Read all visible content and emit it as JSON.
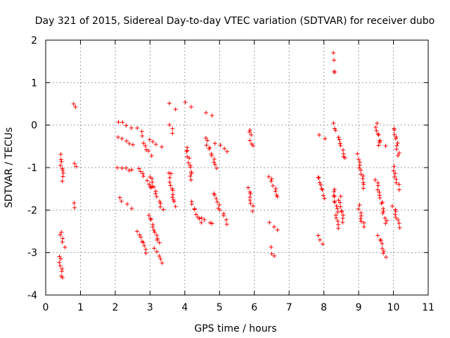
{
  "chart_data": {
    "type": "scatter",
    "title": "Day 321 of 2015, Sidereal Day-to-day VTEC variation (SDTVAR) for receiver dubo",
    "xlabel": "GPS time / hours",
    "ylabel": "SDTVAR / TECUs",
    "xlim": [
      0,
      11
    ],
    "ylim": [
      -4,
      2
    ],
    "xticks": [
      "0",
      "1",
      "2",
      "3",
      "4",
      "5",
      "6",
      "7",
      "8",
      "9",
      "10",
      "11"
    ],
    "yticks": [
      "-4",
      "-3",
      "-2",
      "-1",
      "0",
      "1",
      "2"
    ],
    "grid": true,
    "marker": "+",
    "color": "#ff0000",
    "series": [
      {
        "name": "SDTVAR",
        "segments": [
          [
            0.42,
            0.5,
            -0.7,
            -1.3
          ],
          [
            0.42,
            0.52,
            -2.5,
            -2.85
          ],
          [
            0.4,
            0.46,
            -3.1,
            -3.6
          ],
          [
            0.8,
            0.84,
            0.52,
            0.4
          ],
          [
            0.82,
            0.86,
            -0.93,
            -0.98
          ],
          [
            0.8,
            0.84,
            -1.85,
            -1.95
          ],
          [
            2.1,
            2.45,
            0.1,
            -0.1
          ],
          [
            2.1,
            2.5,
            -0.3,
            -0.45
          ],
          [
            2.1,
            2.5,
            -1.0,
            -1.05
          ],
          [
            2.1,
            2.45,
            -1.7,
            -1.95
          ],
          [
            2.65,
            2.8,
            -0.05,
            -0.25
          ],
          [
            2.8,
            3.05,
            -0.4,
            -0.7
          ],
          [
            2.7,
            3.05,
            -1.0,
            -1.5
          ],
          [
            2.65,
            2.9,
            -2.5,
            -3.0
          ],
          [
            3.0,
            3.3,
            -0.35,
            -0.5
          ],
          [
            3.0,
            3.35,
            -1.2,
            -2.0
          ],
          [
            3.0,
            3.25,
            -2.1,
            -2.8
          ],
          [
            3.15,
            3.35,
            -2.9,
            -3.25
          ],
          [
            3.55,
            3.7,
            0.5,
            0.4
          ],
          [
            3.55,
            3.68,
            0.0,
            -0.2
          ],
          [
            3.55,
            3.7,
            -1.1,
            -1.9
          ],
          [
            4.05,
            4.2,
            0.55,
            0.45
          ],
          [
            4.05,
            4.2,
            -0.5,
            -1.3
          ],
          [
            4.2,
            4.45,
            -1.8,
            -2.3
          ],
          [
            4.6,
            4.8,
            0.3,
            0.2
          ],
          [
            4.6,
            4.9,
            -0.3,
            -1.0
          ],
          [
            4.5,
            4.8,
            -2.2,
            -2.35
          ],
          [
            4.9,
            5.2,
            -0.4,
            -0.6
          ],
          [
            4.8,
            5.2,
            -1.6,
            -2.3
          ],
          [
            5.85,
            5.95,
            -0.1,
            -0.5
          ],
          [
            5.85,
            5.95,
            -1.5,
            -2.0
          ],
          [
            6.45,
            6.7,
            -1.2,
            -1.7
          ],
          [
            6.45,
            6.7,
            -2.3,
            -2.5
          ],
          [
            6.45,
            6.55,
            -2.9,
            -3.1
          ],
          [
            7.9,
            8.0,
            -0.25,
            -0.3
          ],
          [
            7.85,
            8.0,
            -1.2,
            -1.7
          ],
          [
            7.85,
            7.98,
            -2.6,
            -2.8
          ],
          [
            8.25,
            8.3,
            1.7,
            1.55
          ],
          [
            8.28,
            8.3,
            1.25,
            1.25
          ],
          [
            8.25,
            8.3,
            0.05,
            -0.15
          ],
          [
            8.3,
            8.4,
            -1.5,
            -2.4
          ],
          [
            8.4,
            8.6,
            -0.3,
            -0.8
          ],
          [
            8.45,
            8.55,
            -1.7,
            -2.3
          ],
          [
            9.0,
            9.15,
            -0.7,
            -1.5
          ],
          [
            9.0,
            9.15,
            -1.9,
            -2.4
          ],
          [
            9.5,
            9.6,
            0.05,
            -0.5
          ],
          [
            9.5,
            9.8,
            -1.3,
            -2.3
          ],
          [
            9.55,
            9.75,
            -2.6,
            -3.1
          ],
          [
            9.6,
            9.8,
            -0.35,
            -0.5
          ],
          [
            10.0,
            10.15,
            -0.05,
            -0.7
          ],
          [
            10.0,
            10.15,
            -1.0,
            -1.5
          ],
          [
            10.0,
            10.15,
            -1.9,
            -2.4
          ]
        ]
      }
    ]
  }
}
